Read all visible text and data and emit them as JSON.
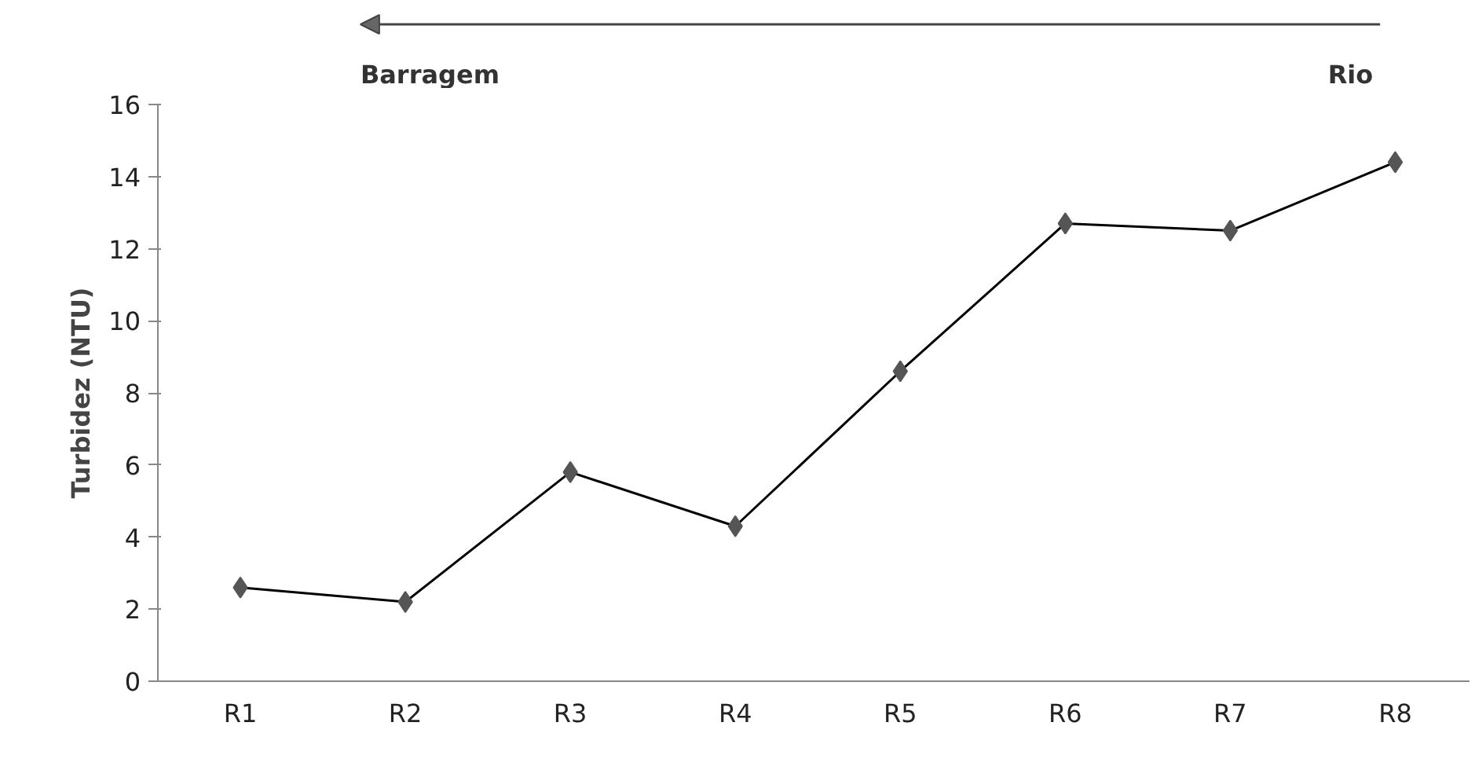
{
  "chart_data": {
    "type": "line",
    "ylabel": "Turbidez (NTU)",
    "categories": [
      "R1",
      "R2",
      "R3",
      "R4",
      "R5",
      "R6",
      "R7",
      "R8"
    ],
    "series": [
      {
        "color": "#555555",
        "values": [
          2.6,
          2.2,
          5.8,
          4.3,
          8.6,
          12.7,
          12.5,
          14.4
        ]
      }
    ],
    "ylim": [
      0,
      16
    ],
    "yticks": [
      0,
      2,
      4,
      6,
      8,
      10,
      12,
      14,
      16
    ],
    "grid": false,
    "marker": "diamond",
    "line_style": "solid",
    "annotations": [
      "Barragem",
      "Rio"
    ]
  }
}
